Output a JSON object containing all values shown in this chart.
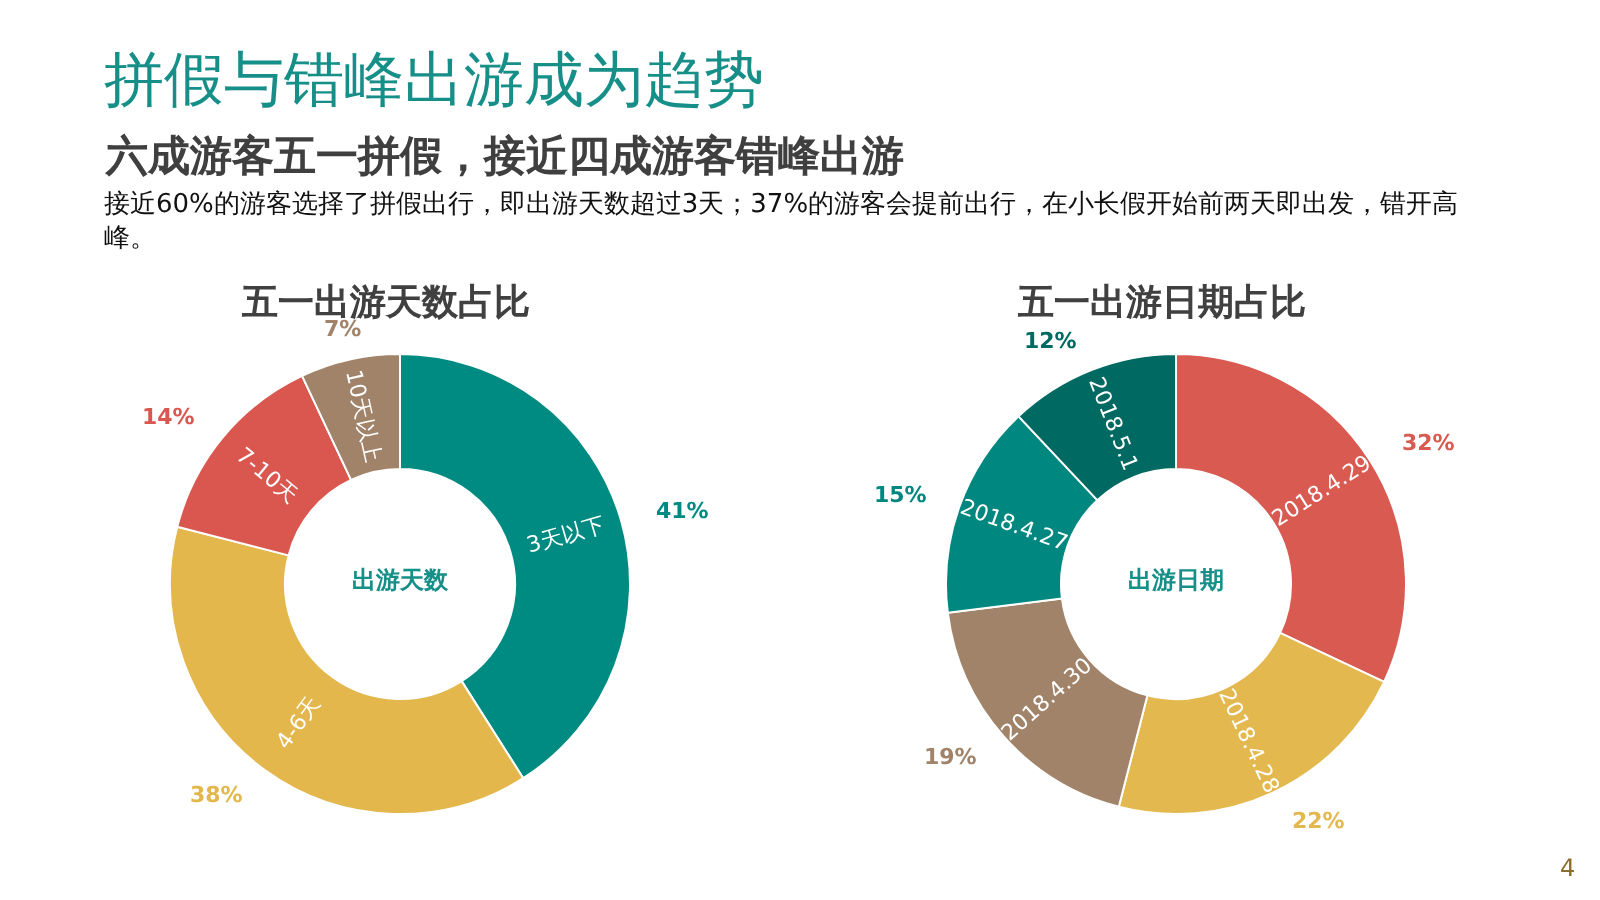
{
  "chart_data": [
    {
      "type": "other",
      "title": "拼假与错峰出游成为趋势",
      "subtitle": "六成游客五一拼假，接近四成游客错峰出游",
      "annotations": [
        "接近60%的游客选择了拼假出行，即出游天数超过3天；37%的游客会提前出行，在小长假开始前两天即出发，错开高峰。",
        "4"
      ]
    },
    {
      "type": "donut",
      "title": "五一出游天数占比",
      "annotations": [
        "出游天数"
      ],
      "categories": [
        "3天以下",
        "4-6天",
        "7-10天",
        "10天以上"
      ],
      "values": [
        41,
        38,
        14,
        7
      ],
      "colors": [
        "#008b82",
        "#e3b74c",
        "#d9574e",
        "#a08369"
      ],
      "value_labels": [
        "41%",
        "38%",
        "14%",
        "7%"
      ]
    },
    {
      "type": "donut",
      "title": "五一出游日期占比",
      "annotations": [
        "出游日期"
      ],
      "categories": [
        "2018.4.29",
        "2018.4.28",
        "2018.4.30",
        "2018.4.27",
        "2018.5.1"
      ],
      "values": [
        32,
        22,
        19,
        15,
        12
      ],
      "colors": [
        "#d95a50",
        "#e3b84e",
        "#a08369",
        "#00877f",
        "#006a62"
      ],
      "value_labels": [
        "32%",
        "22%",
        "19%",
        "15%",
        "12%"
      ]
    }
  ]
}
